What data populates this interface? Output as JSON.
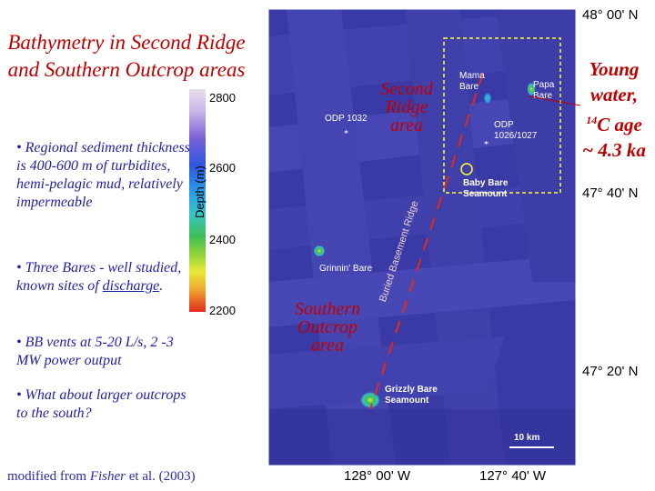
{
  "title": "Bathymetry in Second Ridge and Southern Outcrop areas",
  "bullets": [
    "• Regional sediment thickness is 400-600 m of turbidites, hemi-pelagic mud, relatively impermeable",
    "• Three Bares - well studied, known sites of",
    "discharge",
    ".",
    "• BB vents at 5-20 L/s, 2 -3 MW power output",
    "• What about larger outcrops to the south?"
  ],
  "credit": {
    "prefix": "modified from ",
    "author": "Fisher",
    "suffix": " et al. (2003)"
  },
  "colorbar": {
    "label": "Depth (m)",
    "ticks": [
      "2800",
      "2600",
      "2400",
      "2200"
    ]
  },
  "map": {
    "lat_labels": [
      "48° 00' N",
      "47° 40' N",
      "47° 20' N"
    ],
    "lon_labels": [
      "128° 00' W",
      "127° 40' W"
    ],
    "features": {
      "odp1032": "ODP 1032",
      "mama_bare": "Mama Bare",
      "papa_bare": "Papa Bare",
      "odp1026": "ODP 1026/1027",
      "baby_bare": "Baby Bare Seamount",
      "grinnin_bare": "Grinnin' Bare",
      "buried_ridge": "Buried Basement Ridge",
      "grizzly_bare": "Grizzly Bare Seamount",
      "scale": "10 km"
    },
    "areas": {
      "second_ridge": "Second Ridge area",
      "southern_outcrop": "Southern Outcrop area"
    }
  },
  "annotation": {
    "line1": "Young",
    "line2": "water,",
    "line3_sup": "14",
    "line3": "C age",
    "line4": "~ 4.3 ka"
  },
  "colors": {
    "accent_red": "#c00000",
    "text_blue": "#1f1fa8",
    "map_blue": "#3c3ca8"
  }
}
